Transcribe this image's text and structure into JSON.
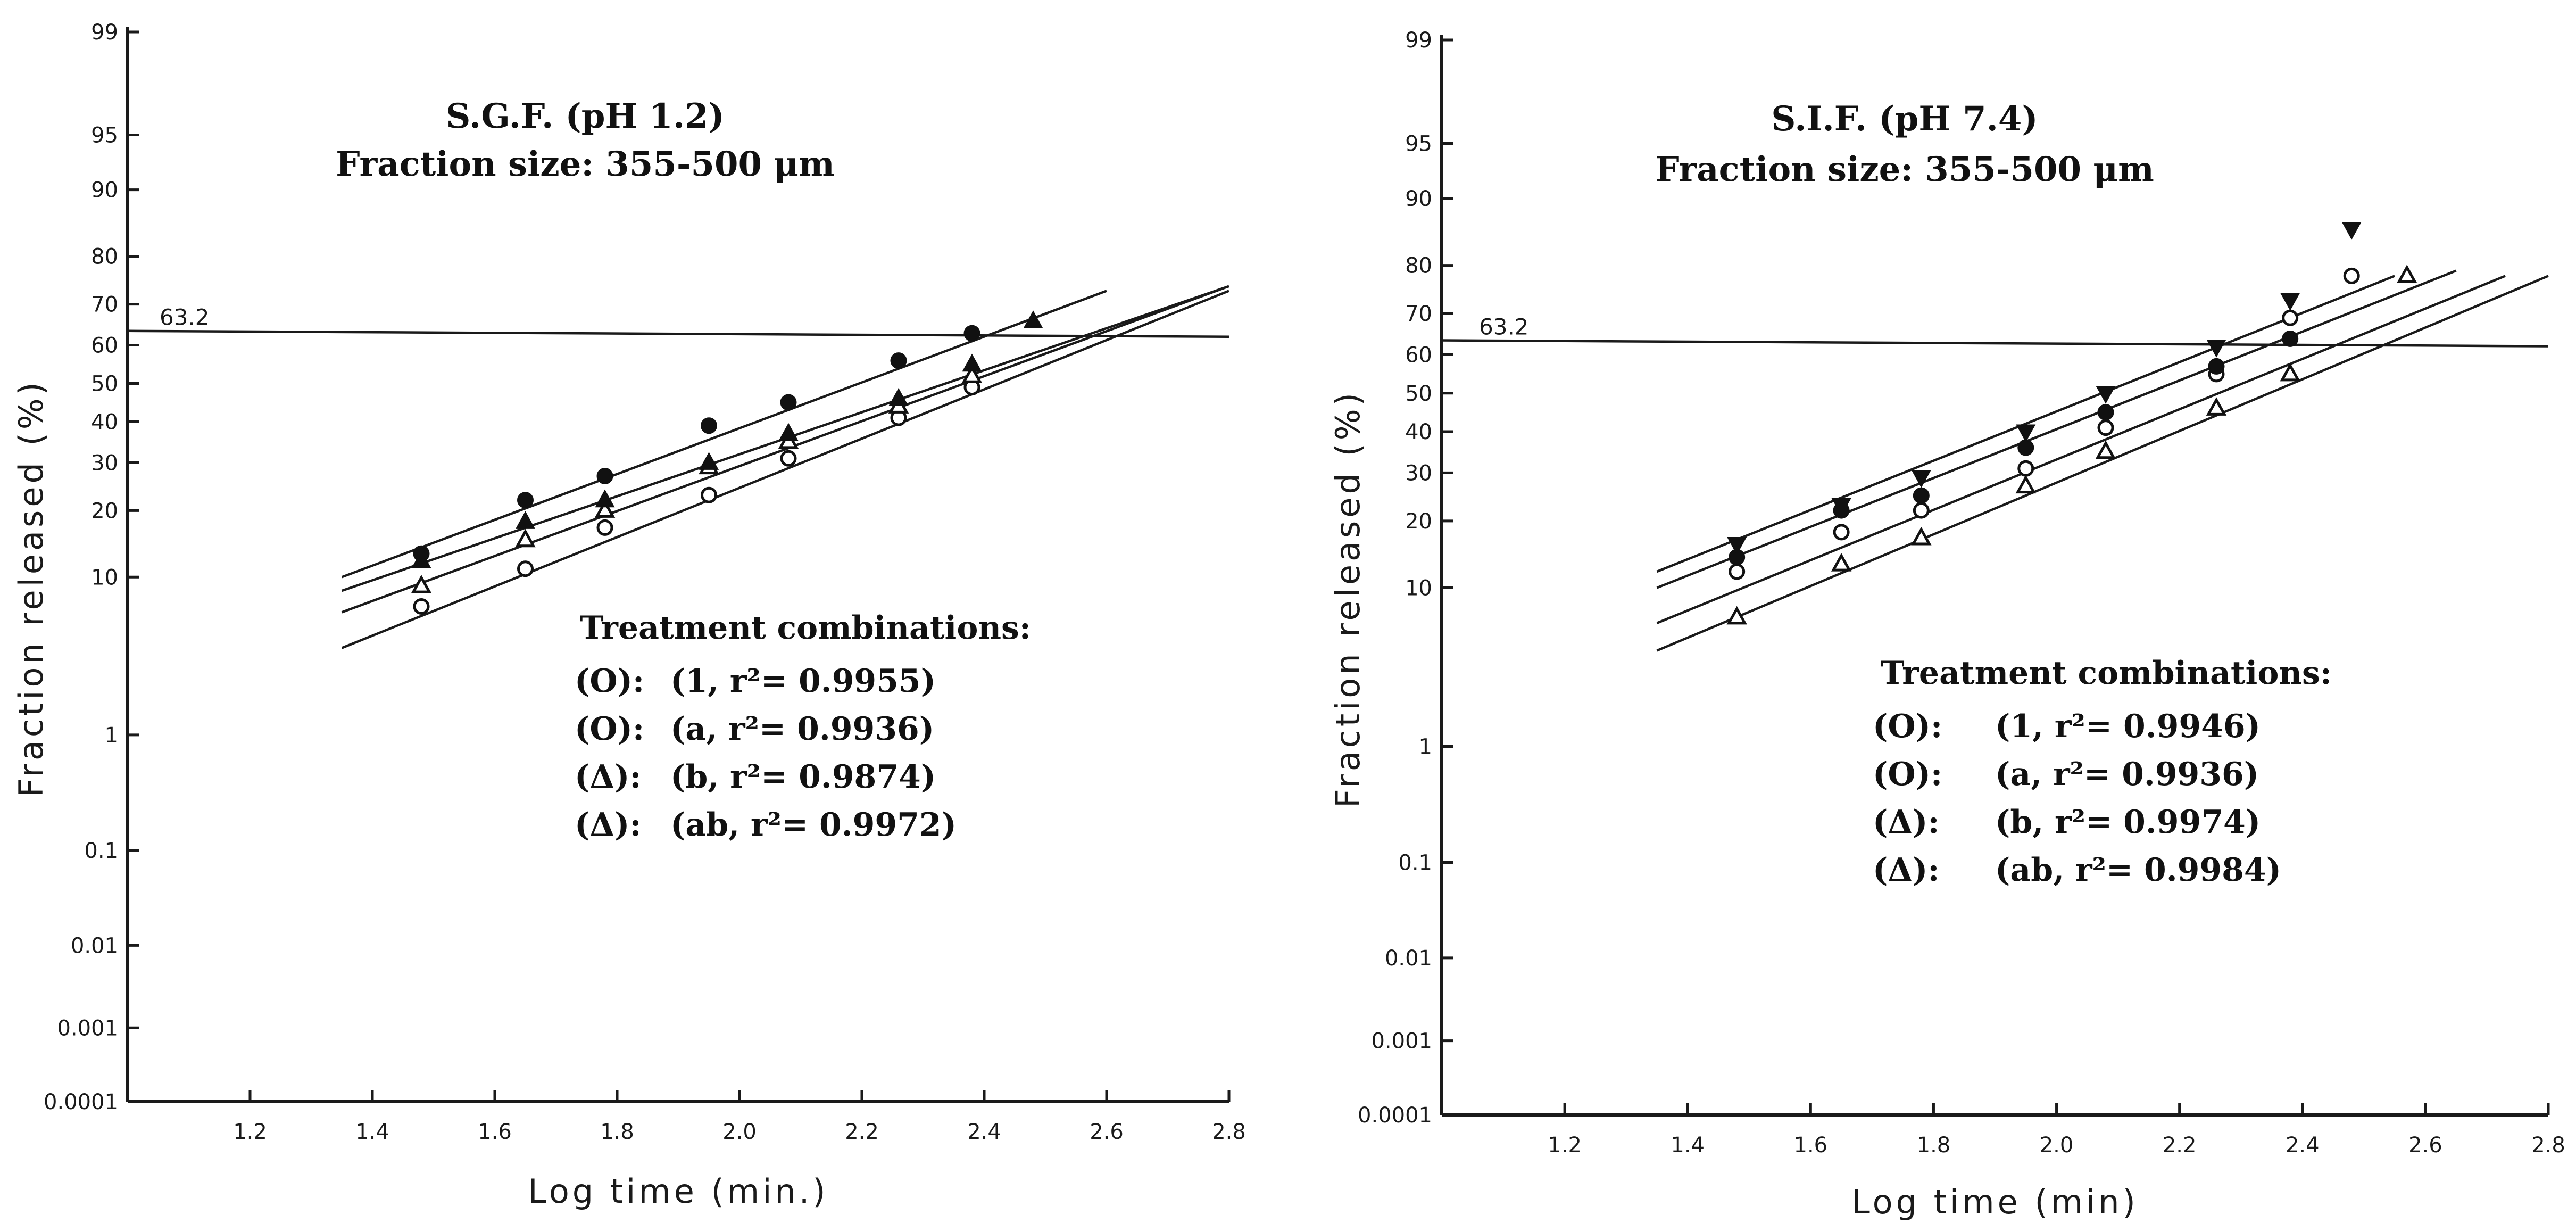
{
  "chart_data": [
    {
      "type": "scatter",
      "title": "S.G.F. (pH 1.2)",
      "subtitle": "Fraction size: 355-500 μm",
      "xlabel": "Log time (min.)",
      "ylabel": "Fraction released (%)",
      "xlim": [
        1.0,
        2.8
      ],
      "xticks": [
        "1.2",
        "1.4",
        "1.6",
        "1.8",
        "2.0",
        "2.2",
        "2.4",
        "2.6",
        "2.8"
      ],
      "yscale": "probability",
      "yticks": [
        "0.0001",
        "0.001",
        "0.01",
        "0.1",
        "1",
        "10",
        "20",
        "30",
        "40",
        "50",
        "60",
        "70",
        "80",
        "90",
        "95",
        "99"
      ],
      "reference_line": {
        "value": 63.2,
        "label": "63.2"
      },
      "legend_title": "Treatment combinations:",
      "legend": [
        {
          "symbol": "(O):",
          "text": "(1, r²= 0.9955)"
        },
        {
          "symbol": "(O):",
          "text": "(a, r²= 0.9936)"
        },
        {
          "symbol": "(Δ):",
          "text": "(b, r²= 0.9874)"
        },
        {
          "symbol": "(Δ):",
          "text": "(ab, r²= 0.9972)"
        }
      ],
      "series": [
        {
          "marker": "open-circle",
          "x": [
            1.48,
            1.65,
            1.78,
            1.95,
            2.08,
            2.26,
            2.38
          ],
          "y": [
            7,
            11,
            17,
            23,
            31,
            41,
            49
          ]
        },
        {
          "marker": "open-triangle",
          "x": [
            1.48,
            1.65,
            1.78,
            1.95,
            2.08,
            2.26,
            2.38
          ],
          "y": [
            9,
            15,
            20,
            29,
            35,
            44,
            52
          ]
        },
        {
          "marker": "filled-triangle",
          "x": [
            1.48,
            1.65,
            1.78,
            1.95,
            2.08,
            2.26,
            2.38,
            2.48
          ],
          "y": [
            12,
            18,
            22,
            30,
            37,
            46,
            55,
            66
          ]
        },
        {
          "marker": "filled-circle",
          "x": [
            1.48,
            1.65,
            1.78,
            1.95,
            2.08,
            2.26,
            2.38
          ],
          "y": [
            13,
            22,
            27,
            39,
            45,
            56,
            63
          ]
        }
      ],
      "fit_lines": [
        {
          "x": [
            1.35,
            2.8
          ],
          "y": [
            4,
            73
          ]
        },
        {
          "x": [
            1.35,
            2.8
          ],
          "y": [
            6.5,
            74
          ]
        },
        {
          "x": [
            1.35,
            2.8
          ],
          "y": [
            8.5,
            74
          ]
        },
        {
          "x": [
            1.35,
            2.6
          ],
          "y": [
            10,
            73
          ]
        }
      ]
    },
    {
      "type": "scatter",
      "title": "S.I.F. (pH 7.4)",
      "subtitle": "Fraction size: 355-500 μm",
      "xlabel": "Log time (min)",
      "ylabel": "Fraction released (%)",
      "xlim": [
        1.0,
        2.8
      ],
      "xticks": [
        "1.2",
        "1.4",
        "1.6",
        "1.8",
        "2.0",
        "2.2",
        "2.4",
        "2.6",
        "2.8"
      ],
      "yscale": "probability",
      "yticks": [
        "0.0001",
        "0.001",
        "0.01",
        "0.1",
        "1",
        "10",
        "20",
        "30",
        "40",
        "50",
        "60",
        "70",
        "80",
        "90",
        "95",
        "99"
      ],
      "reference_line": {
        "value": 63.2,
        "label": "63.2"
      },
      "legend_title": "Treatment combinations:",
      "legend": [
        {
          "symbol": "(O):",
          "text": "(1, r²= 0.9946)"
        },
        {
          "symbol": "(O):",
          "text": "(a, r²= 0.9936)"
        },
        {
          "symbol": "(Δ):",
          "text": "(b, r²= 0.9974)"
        },
        {
          "symbol": "(Δ):",
          "text": "(ab, r²= 0.9984)"
        }
      ],
      "series": [
        {
          "marker": "open-triangle",
          "x": [
            1.48,
            1.65,
            1.78,
            1.95,
            2.08,
            2.26,
            2.38,
            2.57
          ],
          "y": [
            7,
            13,
            17,
            27,
            35,
            46,
            55,
            78
          ]
        },
        {
          "marker": "open-circle",
          "x": [
            1.48,
            1.65,
            1.78,
            1.95,
            2.08,
            2.26,
            2.38,
            2.48
          ],
          "y": [
            12,
            18,
            22,
            31,
            41,
            55,
            69,
            78
          ]
        },
        {
          "marker": "filled-circle",
          "x": [
            1.48,
            1.65,
            1.78,
            1.95,
            2.08,
            2.26,
            2.38
          ],
          "y": [
            14,
            22,
            25,
            36,
            45,
            57,
            64
          ]
        },
        {
          "marker": "filled-triangle-down",
          "x": [
            1.48,
            1.65,
            1.78,
            1.95,
            2.08,
            2.26,
            2.38,
            2.48
          ],
          "y": [
            16,
            23,
            29,
            40,
            50,
            62,
            73,
            86
          ]
        }
      ],
      "fit_lines": [
        {
          "x": [
            1.35,
            2.8
          ],
          "y": [
            4.5,
            78
          ]
        },
        {
          "x": [
            1.35,
            2.73
          ],
          "y": [
            6.5,
            78
          ]
        },
        {
          "x": [
            1.35,
            2.65
          ],
          "y": [
            10,
            79
          ]
        },
        {
          "x": [
            1.35,
            2.55
          ],
          "y": [
            12,
            78
          ]
        }
      ]
    }
  ]
}
